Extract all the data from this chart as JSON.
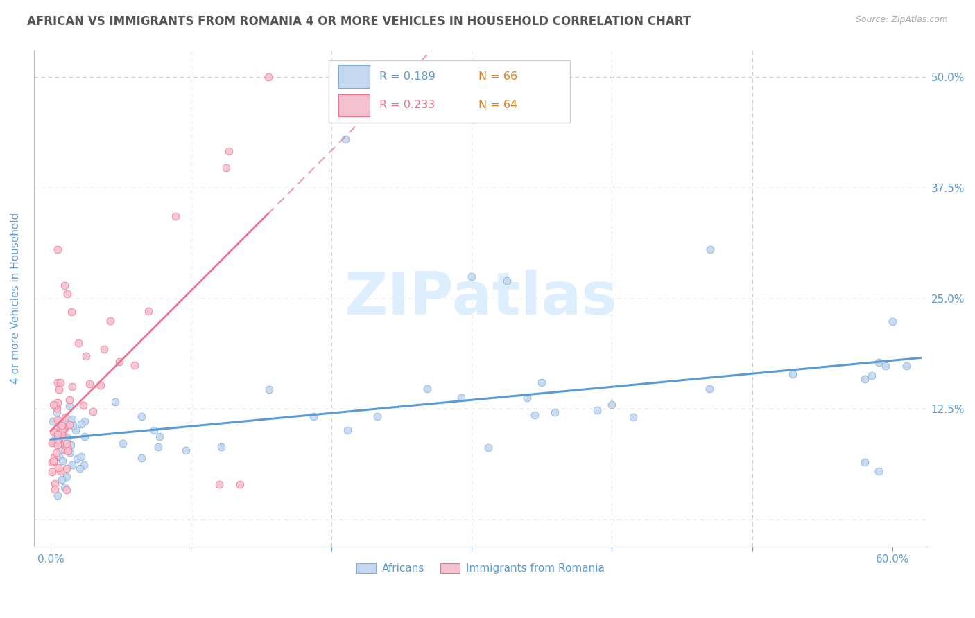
{
  "title": "AFRICAN VS IMMIGRANTS FROM ROMANIA 4 OR MORE VEHICLES IN HOUSEHOLD CORRELATION CHART",
  "source": "Source: ZipAtlas.com",
  "ylabel": "4 or more Vehicles in Household",
  "x_tick_positions": [
    0.0,
    0.1,
    0.2,
    0.3,
    0.4,
    0.5,
    0.6
  ],
  "x_tick_labels": [
    "0.0%",
    "",
    "",
    "",
    "",
    "",
    "60.0%"
  ],
  "y_tick_positions": [
    0.0,
    0.125,
    0.25,
    0.375,
    0.5
  ],
  "y_tick_labels_right": [
    "",
    "12.5%",
    "25.0%",
    "37.5%",
    "50.0%"
  ],
  "xlim": [
    -0.012,
    0.625
  ],
  "ylim": [
    -0.03,
    0.53
  ],
  "legend_r1": "0.189",
  "legend_n1": "66",
  "legend_r2": "0.233",
  "legend_n2": "64",
  "legend_label1": "Africans",
  "legend_label2": "Immigrants from Romania",
  "africans_face_color": "#c5d8f0",
  "africans_edge_color": "#7ab0d8",
  "romania_face_color": "#f5c0cf",
  "romania_edge_color": "#f07090",
  "africans_line_color": "#5b9bd5",
  "romania_line_color": "#f07090",
  "title_color": "#555555",
  "axis_color": "#5b9bd5",
  "source_color": "#aaaaaa",
  "grid_color": "#d0d0d0",
  "watermark_text": "ZIPatlas",
  "watermark_color": "#ddeeff",
  "background_color": "#ffffff",
  "n_color": "#e08020"
}
